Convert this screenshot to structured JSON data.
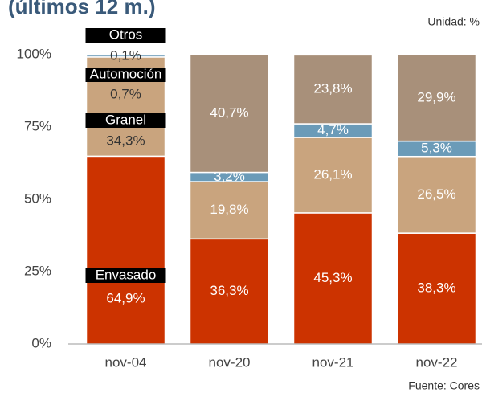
{
  "chart_data": {
    "type": "stacked_bar",
    "title": "(últimos 12 m.)",
    "unit_note": "Unidad: %",
    "source": "Fuente: Cores",
    "categories": [
      "nov-04",
      "nov-20",
      "nov-21",
      "nov-22"
    ],
    "series": [
      {
        "name": "Envasado",
        "color": "#cc3300",
        "values": [
          64.9,
          36.3,
          45.3,
          38.3
        ],
        "value_labels": [
          "64,9%",
          "36,3%",
          "45,3%",
          "38,3%"
        ]
      },
      {
        "name": "Granel",
        "color": "#c9a47e",
        "values": [
          34.3,
          19.8,
          26.1,
          26.5
        ],
        "value_labels": [
          "34,3%",
          "19,8%",
          "26,1%",
          "26,5%"
        ]
      },
      {
        "name": "Automoción",
        "color": "#6b9bb8",
        "values": [
          0.7,
          3.2,
          4.7,
          5.3
        ],
        "value_labels": [
          "0,7%",
          "3,2%",
          "4,7%",
          "5,3%"
        ]
      },
      {
        "name": "Otros",
        "color": "#a8907a",
        "values": [
          0.1,
          40.7,
          23.8,
          29.9
        ],
        "value_labels": [
          "0,1%",
          "40,7%",
          "23,8%",
          "29,9%"
        ]
      }
    ],
    "ylim": [
      0,
      100
    ],
    "yticks": [
      {
        "value": 0,
        "label": "0%"
      },
      {
        "value": 25,
        "label": "25%"
      },
      {
        "value": 50,
        "label": "50%"
      },
      {
        "value": 75,
        "label": "75%"
      },
      {
        "value": 100,
        "label": "100%"
      }
    ]
  }
}
